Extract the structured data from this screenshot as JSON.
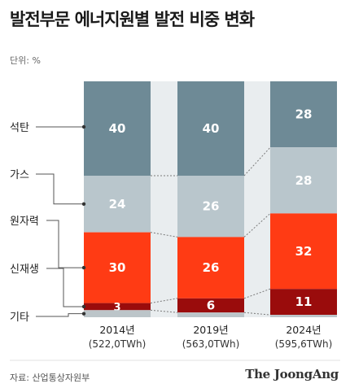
{
  "title": "발전부문 에너지원별 발전 비중 변화",
  "unit_label": "단위: %",
  "source": "자료: 산업통상자원부",
  "logo": "The JoongAng",
  "colors": {
    "coal": "#6e8a96",
    "gas": "#b9c6cc",
    "nuclear": "#ff3b14",
    "other": "#9a0c0c",
    "small": "#bcc5c9"
  },
  "chart_data": {
    "type": "bar",
    "stacked": true,
    "categories": [
      "2014년",
      "2019년",
      "2024년"
    ],
    "category_sublabels": [
      "(522,0TWh)",
      "(563,0TWh)",
      "(595,6TWh)"
    ],
    "series": [
      {
        "name": "석탄",
        "values": [
          40,
          40,
          28
        ],
        "color_key": "coal"
      },
      {
        "name": "가스",
        "values": [
          24,
          26,
          28
        ],
        "color_key": "gas"
      },
      {
        "name": "원자력",
        "values": [
          30,
          26,
          32
        ],
        "color_key": "nuclear"
      },
      {
        "name": "신재생",
        "values": [
          3,
          6,
          11
        ],
        "color_key": "other"
      },
      {
        "name": "기타",
        "values": [
          3,
          2,
          1
        ],
        "color_key": "small"
      }
    ],
    "label_visible": [
      [
        true,
        true,
        true
      ],
      [
        true,
        true,
        true
      ],
      [
        true,
        true,
        true
      ],
      [
        true,
        true,
        true
      ],
      [
        false,
        false,
        false
      ]
    ],
    "ylim": [
      0,
      100
    ],
    "legend_placement": "left"
  }
}
